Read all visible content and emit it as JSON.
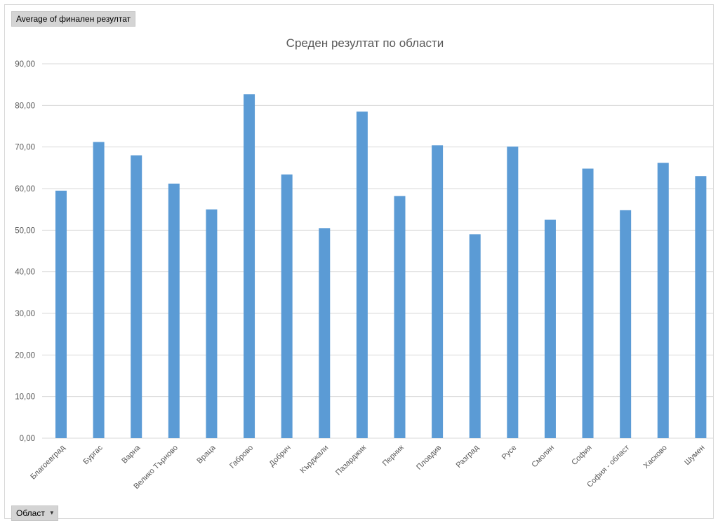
{
  "field_buttons": {
    "value_field": "Average of финален резултат",
    "axis_field": "Област",
    "dropdown_icon": "dropdown-arrow-icon"
  },
  "colors": {
    "bar": "#5b9bd5",
    "gridline": "#d9d9d9",
    "text": "#595959"
  },
  "chart_data": {
    "type": "bar",
    "title": "Среден резултат по области",
    "xlabel": "",
    "ylabel": "",
    "ylim": [
      0,
      90
    ],
    "ytick_step": 10,
    "ytick_labels": [
      "0,00",
      "10,00",
      "20,00",
      "30,00",
      "40,00",
      "50,00",
      "60,00",
      "70,00",
      "80,00",
      "90,00"
    ],
    "grid": true,
    "legend": "none",
    "categories": [
      "Благоевград",
      "Бургас",
      "Варна",
      "Велико Търново",
      "Враца",
      "Габрово",
      "Добрич",
      "Кърджали",
      "Пазарджик",
      "Перник",
      "Пловдив",
      "Разград",
      "Русе",
      "Смолян",
      "София",
      "София - област",
      "Хасково",
      "Шумен"
    ],
    "values": [
      59.5,
      71.2,
      68.0,
      61.2,
      55.0,
      82.7,
      63.4,
      50.5,
      78.5,
      58.2,
      70.4,
      49.0,
      70.1,
      52.5,
      64.8,
      54.8,
      66.2,
      63.0
    ]
  }
}
